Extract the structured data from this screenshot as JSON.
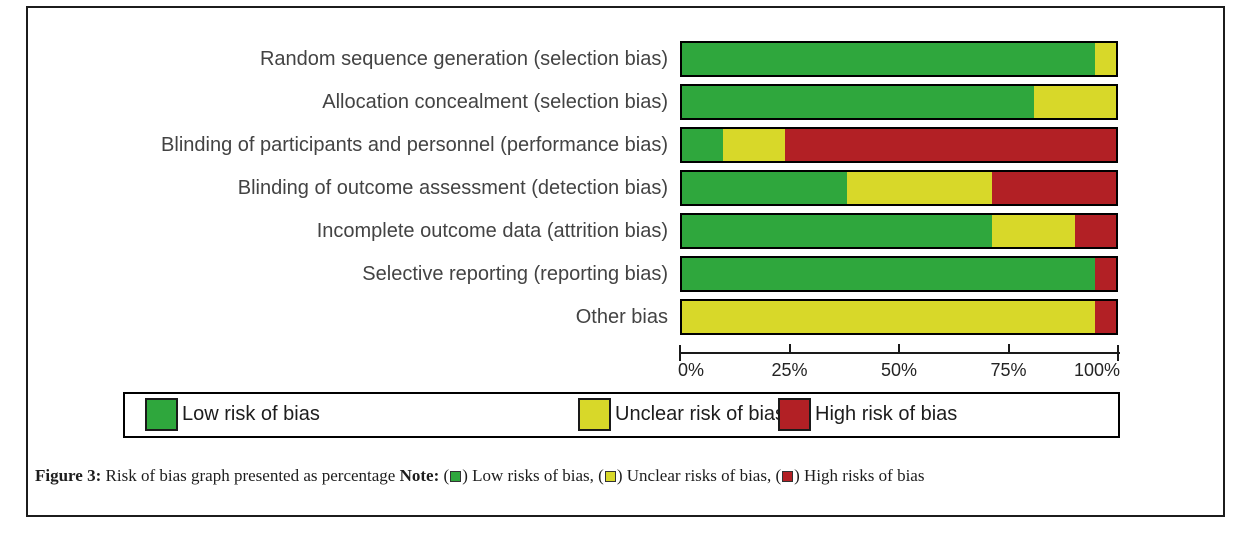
{
  "colors": {
    "low_risk": "#2fa73d",
    "unclear_risk": "#d8d829",
    "high_risk": "#b22025",
    "bar_border": "#000000",
    "frame_border": "#1c1c1c"
  },
  "chart_data": {
    "type": "bar",
    "orientation": "horizontal",
    "stacked": true,
    "unit": "%",
    "title": "",
    "xlabel": "",
    "ylabel": "",
    "xlim": [
      0,
      100
    ],
    "grid": false,
    "legend_position": "bottom",
    "categories": [
      "Random sequence generation (selection bias)",
      "Allocation concealment (selection bias)",
      "Blinding of participants and personnel (performance bias)",
      "Blinding of outcome assessment (detection bias)",
      "Incomplete outcome data (attrition bias)",
      "Selective reporting (reporting bias)",
      "Other bias"
    ],
    "series": [
      {
        "name": "Low risk of bias",
        "color": "#2fa73d",
        "values": [
          95.2,
          81.0,
          9.5,
          38.1,
          71.4,
          95.2,
          0.0
        ]
      },
      {
        "name": "Unclear risk of bias",
        "color": "#d8d829",
        "values": [
          4.8,
          19.0,
          14.3,
          33.3,
          19.1,
          0.0,
          95.2
        ]
      },
      {
        "name": "High risk of bias",
        "color": "#b22025",
        "values": [
          0.0,
          0.0,
          76.2,
          28.6,
          9.5,
          4.8,
          4.8
        ]
      }
    ],
    "x_axis": {
      "tick_labels": [
        "0%",
        "25%",
        "50%",
        "75%",
        "100%"
      ],
      "tick_values": [
        0,
        25,
        50,
        75,
        100
      ]
    }
  },
  "legend": {
    "items": [
      {
        "label": "Low risk of bias",
        "color": "#2fa73d"
      },
      {
        "label": "Unclear risk of bias",
        "color": "#d8d829"
      },
      {
        "label": "High risk of bias",
        "color": "#b22025"
      }
    ]
  },
  "caption": {
    "figure_label": "Figure 3:",
    "title": "Risk of bias graph presented as percentage",
    "note_label": "Note:",
    "note_items": [
      {
        "pre": "(",
        "post": ") Low risks of bias,",
        "color": "#2fa73d"
      },
      {
        "pre": "(",
        "post": ") Unclear risks of bias,",
        "color": "#d8d829"
      },
      {
        "pre": "(",
        "post": ") High risks of bias",
        "color": "#b22025"
      }
    ]
  }
}
